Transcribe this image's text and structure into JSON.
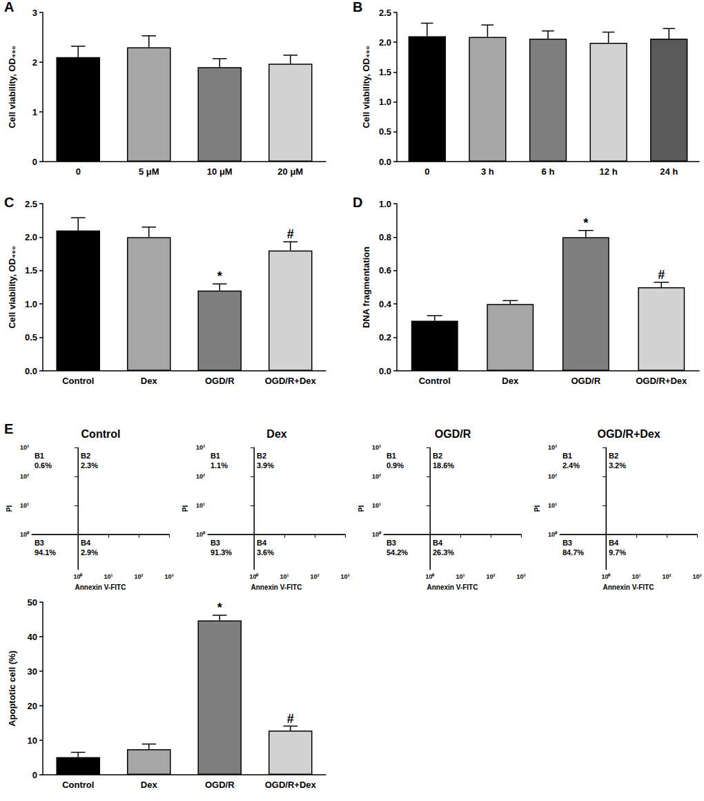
{
  "chart_data": [
    {
      "type": "bar",
      "panel": "A",
      "y_label": "Cell viability, OD₄₉₀",
      "categories": [
        "0",
        "5 μM",
        "10 μM",
        "20 μM"
      ],
      "values": [
        2.1,
        2.3,
        1.9,
        1.97
      ],
      "errors": [
        0.22,
        0.23,
        0.17,
        0.17
      ],
      "colors": [
        "#000000",
        "#a6a6a6",
        "#7f7f7f",
        "#d3d3d3"
      ],
      "ylim": [
        0,
        3
      ],
      "yticks": [
        0,
        1,
        2,
        3
      ]
    },
    {
      "type": "bar",
      "panel": "B",
      "y_label": "Cell viability, OD₄₉₀",
      "categories": [
        "0",
        "3 h",
        "6 h",
        "12 h",
        "24 h"
      ],
      "values": [
        2.1,
        2.09,
        2.06,
        1.99,
        2.06
      ],
      "errors": [
        0.22,
        0.2,
        0.13,
        0.18,
        0.17
      ],
      "colors": [
        "#000000",
        "#a6a6a6",
        "#7f7f7f",
        "#d3d3d3",
        "#595959"
      ],
      "ylim": [
        0,
        2.5
      ],
      "yticks": [
        {
          "value": 0,
          "label": "0.0"
        },
        0.5,
        {
          "value": 1,
          "label": "1.0"
        },
        1.5,
        {
          "value": 2,
          "label": "2.0"
        },
        2.5
      ]
    },
    {
      "type": "bar",
      "panel": "C",
      "y_label": "Cell viability, OD₄₉₀",
      "categories": [
        "Control",
        "Dex",
        "OGD/R",
        "OGD/R+Dex"
      ],
      "values": [
        2.1,
        2.0,
        1.2,
        1.8
      ],
      "errors": [
        0.19,
        0.15,
        0.1,
        0.13
      ],
      "annotations": [
        null,
        null,
        "*",
        "#"
      ],
      "colors": [
        "#000000",
        "#a6a6a6",
        "#7f7f7f",
        "#d3d3d3"
      ],
      "ylim": [
        0,
        2.5
      ],
      "yticks": [
        {
          "value": 0,
          "label": "0.0"
        },
        0.5,
        {
          "value": 1,
          "label": "1.0"
        },
        1.5,
        {
          "value": 2,
          "label": "2.0"
        },
        2.5
      ]
    },
    {
      "type": "bar",
      "panel": "D",
      "y_label": "DNA fragmentation",
      "categories": [
        "Control",
        "Dex",
        "OGD/R",
        "OGD/R+Dex"
      ],
      "values": [
        0.3,
        0.4,
        0.8,
        0.5
      ],
      "errors": [
        0.03,
        0.02,
        0.04,
        0.03
      ],
      "annotations": [
        null,
        null,
        "*",
        "#"
      ],
      "colors": [
        "#000000",
        "#a6a6a6",
        "#7f7f7f",
        "#d3d3d3"
      ],
      "ylim": [
        0,
        1
      ],
      "yticks": [
        {
          "value": 0,
          "label": "0.0"
        },
        0.2,
        0.4,
        0.6,
        0.8,
        {
          "value": 1,
          "label": "1.0"
        }
      ]
    },
    {
      "type": "quadrant",
      "panel": "E",
      "title": "Control",
      "x_label": "Annexin V-FITC",
      "y_label": "PI",
      "log": true,
      "xlim": [
        0.03,
        1000
      ],
      "ylim": [
        0.06,
        1000
      ],
      "xticks": [
        {
          "value": 1,
          "label": "10⁰"
        },
        {
          "value": 10,
          "label": "10¹"
        },
        {
          "value": 100,
          "label": "10²"
        },
        {
          "value": 1000,
          "label": "10³"
        }
      ],
      "yticks": [
        {
          "value": 1,
          "label": "10⁰"
        },
        {
          "value": 10,
          "label": "10¹"
        },
        {
          "value": 100,
          "label": "10²"
        },
        {
          "value": 1000,
          "label": "10³"
        }
      ],
      "gate": [
        1,
        1
      ],
      "quadrants": [
        {
          "name": "B1",
          "value": 0.6,
          "label": "0.6%"
        },
        {
          "name": "B2",
          "value": 2.3,
          "label": "2.3%"
        },
        {
          "name": "B3",
          "value": 94.1,
          "label": "94.1%"
        },
        {
          "name": "B4",
          "value": 2.9,
          "label": "2.9%"
        }
      ]
    },
    {
      "type": "quadrant",
      "title": "Dex",
      "x_label": "Annexin V-FITC",
      "y_label": "PI",
      "log": true,
      "xlim": [
        0.03,
        1000
      ],
      "ylim": [
        0.06,
        1000
      ],
      "xticks": [
        {
          "value": 1,
          "label": "10⁰"
        },
        {
          "value": 10,
          "label": "10¹"
        },
        {
          "value": 100,
          "label": "10²"
        },
        {
          "value": 1000,
          "label": "10³"
        }
      ],
      "yticks": [
        {
          "value": 1,
          "label": "10⁰"
        },
        {
          "value": 10,
          "label": "10¹"
        },
        {
          "value": 100,
          "label": "10²"
        },
        {
          "value": 1000,
          "label": "10³"
        }
      ],
      "gate": [
        1,
        1
      ],
      "quadrants": [
        {
          "name": "B1",
          "value": 1.1,
          "label": "1.1%"
        },
        {
          "name": "B2",
          "value": 3.9,
          "label": "3.9%"
        },
        {
          "name": "B3",
          "value": 91.3,
          "label": "91.3%"
        },
        {
          "name": "B4",
          "value": 3.6,
          "label": "3.6%"
        }
      ]
    },
    {
      "type": "quadrant",
      "title": "OGD/R",
      "x_label": "Annexin V-FITC",
      "y_label": "PI",
      "log": true,
      "xlim": [
        0.03,
        1000
      ],
      "ylim": [
        0.06,
        1000
      ],
      "xticks": [
        {
          "value": 1,
          "label": "10⁰"
        },
        {
          "value": 10,
          "label": "10¹"
        },
        {
          "value": 100,
          "label": "10²"
        },
        {
          "value": 1000,
          "label": "10³"
        }
      ],
      "yticks": [
        {
          "value": 1,
          "label": "10⁰"
        },
        {
          "value": 10,
          "label": "10¹"
        },
        {
          "value": 100,
          "label": "10²"
        },
        {
          "value": 1000,
          "label": "10³"
        }
      ],
      "gate": [
        1,
        1
      ],
      "quadrants": [
        {
          "name": "B1",
          "value": 0.9,
          "label": "0.9%"
        },
        {
          "name": "B2",
          "value": 18.6,
          "label": "18.6%"
        },
        {
          "name": "B3",
          "value": 54.2,
          "label": "54.2%"
        },
        {
          "name": "B4",
          "value": 26.3,
          "label": "26.3%"
        }
      ]
    },
    {
      "type": "quadrant",
      "title": "OGD/R+Dex",
      "x_label": "Annexin V-FITC",
      "y_label": "PI",
      "log": true,
      "xlim": [
        0.03,
        1000
      ],
      "ylim": [
        0.06,
        1000
      ],
      "xticks": [
        {
          "value": 1,
          "label": "10⁰"
        },
        {
          "value": 10,
          "label": "10¹"
        },
        {
          "value": 100,
          "label": "10²"
        },
        {
          "value": 1000,
          "label": "10³"
        }
      ],
      "yticks": [
        {
          "value": 1,
          "label": "10⁰"
        },
        {
          "value": 10,
          "label": "10¹"
        },
        {
          "value": 100,
          "label": "10²"
        },
        {
          "value": 1000,
          "label": "10³"
        }
      ],
      "gate": [
        1,
        1
      ],
      "quadrants": [
        {
          "name": "B1",
          "value": 2.4,
          "label": "2.4%"
        },
        {
          "name": "B2",
          "value": 3.2,
          "label": "3.2%"
        },
        {
          "name": "B3",
          "value": 84.7,
          "label": "84.7%"
        },
        {
          "name": "B4",
          "value": 9.7,
          "label": "9.7%"
        }
      ]
    },
    {
      "type": "bar",
      "y_label": "Apoptotic cell (%)",
      "categories": [
        "Control",
        "Dex",
        "OGD/R",
        "OGD/R+Dex"
      ],
      "values": [
        5.1,
        7.4,
        44.7,
        12.8
      ],
      "errors": [
        1.4,
        1.5,
        1.5,
        1.3
      ],
      "annotations": [
        null,
        null,
        "*",
        "#"
      ],
      "colors": [
        "#000000",
        "#a6a6a6",
        "#7f7f7f",
        "#d3d3d3"
      ],
      "ylim": [
        0,
        50
      ],
      "yticks": [
        0,
        10,
        20,
        30,
        40,
        50
      ]
    }
  ]
}
